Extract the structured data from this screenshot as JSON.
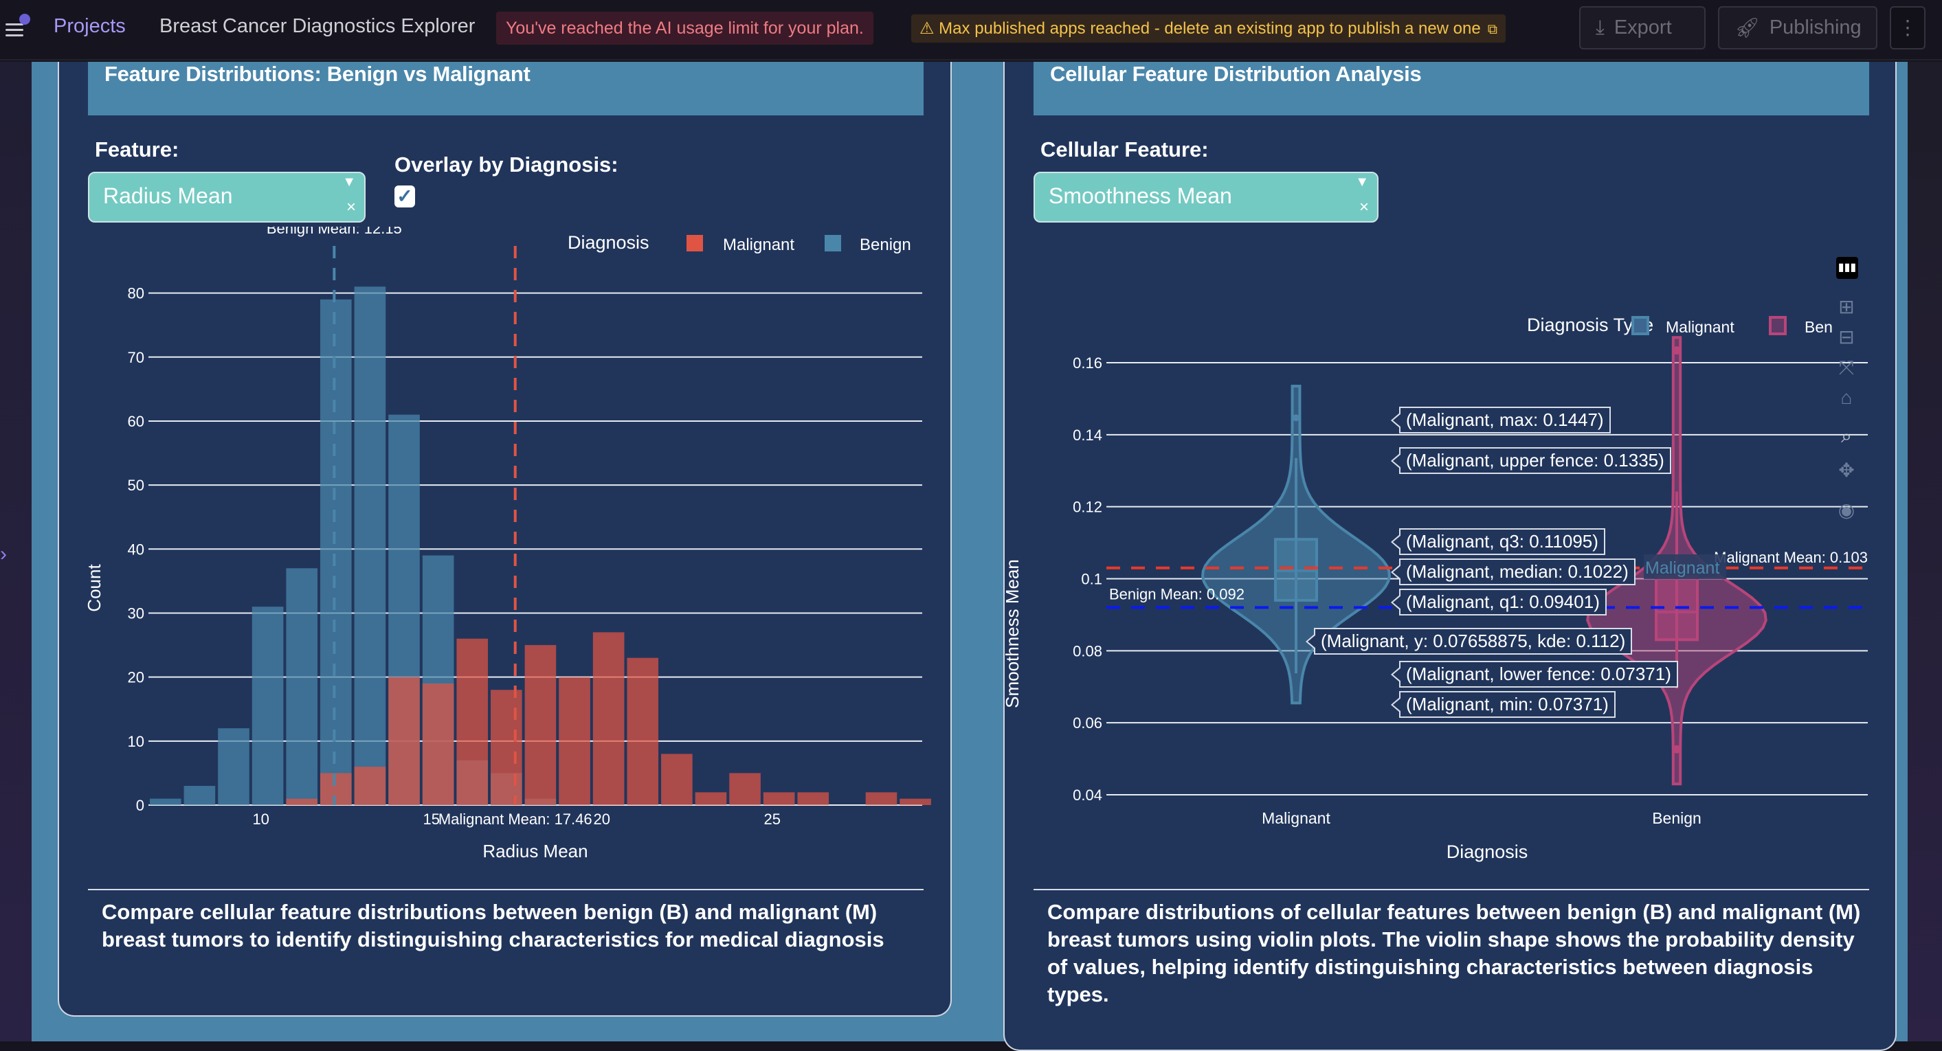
{
  "topbar": {
    "projects_label": "Projects",
    "app_title": "Breast Cancer Diagnostics Explorer",
    "ai_limit_notice": "You've reached the AI usage limit for your plan.",
    "publish_warning": "⚠ Max published apps reached - delete an existing app to publish a new one",
    "export_label": "Export",
    "publishing_label": "Publishing",
    "more_label": "⋮"
  },
  "left_panel": {
    "title": "Feature Distributions: Benign vs Malignant",
    "feature_label": "Feature:",
    "feature_value": "Radius Mean",
    "overlay_label": "Overlay by Diagnosis:",
    "overlay_checked": true,
    "description": "Compare cellular feature distributions between benign (B) and malignant (M) breast tumors to identify distinguishing characteristics for medical diagnosis"
  },
  "right_panel": {
    "title": "Cellular Feature Distribution Analysis",
    "feature_label": "Cellular Feature:",
    "feature_value": "Smoothness Mean",
    "description": "Compare distributions of cellular features between benign (B) and malignant (M) breast tumors using violin plots. The violin shape shows the probability density of values, helping identify distinguishing characteristics between diagnosis types.",
    "modebar": [
      "zoom-in",
      "zoom-out",
      "autoscale",
      "reset-axes",
      "zoom-box",
      "pan",
      "download-png"
    ]
  },
  "chart_data": [
    {
      "type": "bar",
      "subtype": "overlaid-histogram",
      "title": "",
      "xlabel": "Radius Mean",
      "ylabel": "Count",
      "xlim": [
        6.7,
        29.4
      ],
      "ylim": [
        0,
        85
      ],
      "xticks": [
        10,
        15,
        20,
        25
      ],
      "yticks": [
        0,
        10,
        20,
        30,
        40,
        50,
        60,
        70,
        80
      ],
      "grid": true,
      "legend": {
        "title": "Diagnosis",
        "placement": "top-right",
        "entries": [
          "Malignant",
          "Benign"
        ]
      },
      "bin_start": 6.7,
      "bin_width": 1.0,
      "series": [
        {
          "name": "Benign",
          "color": "#4a86aa",
          "values": [
            1,
            3,
            12,
            31,
            37,
            79,
            81,
            61,
            39,
            7,
            5,
            1,
            0,
            0,
            0,
            0,
            0,
            0,
            0,
            0,
            0,
            0,
            0
          ]
        },
        {
          "name": "Malignant",
          "color": "#e05444",
          "values": [
            0,
            0,
            0,
            0,
            1,
            5,
            6,
            20,
            19,
            26,
            18,
            25,
            20,
            27,
            23,
            8,
            2,
            5,
            2,
            2,
            0,
            2,
            1
          ]
        }
      ],
      "annotations": [
        {
          "text": "Benign Mean: 12.15",
          "x": 12.15,
          "color": "#4a86aa"
        },
        {
          "text": "Malignant Mean: 17.46",
          "x": 17.46,
          "color": "#e05444"
        }
      ]
    },
    {
      "type": "violin",
      "title": "",
      "xlabel": "Diagnosis",
      "ylabel": "Smoothness Mean",
      "categories": [
        "Malignant",
        "Benign"
      ],
      "ylim": [
        0.036,
        0.172
      ],
      "yticks": [
        0.04,
        0.06,
        0.08,
        0.1,
        0.12,
        0.14,
        0.16
      ],
      "ytick_labels": [
        "0.04",
        "0.06",
        "0.08",
        "0.1",
        "0.12",
        "0.14",
        "0.16"
      ],
      "grid": true,
      "legend": {
        "title": "Diagnosis Type",
        "placement": "top-right",
        "entries": [
          "Malignant",
          "Benign"
        ]
      },
      "series": [
        {
          "name": "Malignant",
          "color": "#4a86aa",
          "min": 0.07371,
          "lower_fence": 0.07371,
          "q1": 0.09401,
          "median": 0.1022,
          "q3": 0.11095,
          "upper_fence": 0.1335,
          "max": 0.1447,
          "mean": 0.103
        },
        {
          "name": "Benign",
          "color": "#b8457a",
          "min": 0.05263,
          "lower_fence": 0.0695,
          "q1": 0.08306,
          "median": 0.09076,
          "q3": 0.1007,
          "upper_fence": 0.1242,
          "max": 0.1634,
          "mean": 0.092
        }
      ],
      "reference_lines": [
        {
          "text": "Malignant Mean: 0.103",
          "y": 0.103,
          "color": "#e8392a"
        },
        {
          "text": "Benign Mean: 0.092",
          "y": 0.092,
          "color": "#0a1af0"
        }
      ],
      "hover_labels": [
        "(Malignant, max: 0.1447)",
        "(Malignant, upper fence: 0.1335)",
        "(Malignant, q3: 0.11095)",
        "(Malignant, median: 0.1022)",
        "(Malignant, q1: 0.09401)",
        "(Malignant, y: 0.07658875, kde: 0.112)",
        "(Malignant, lower fence: 0.07371)",
        "(Malignant, min: 0.07371)"
      ],
      "hover_category_label": "Malignant"
    }
  ]
}
